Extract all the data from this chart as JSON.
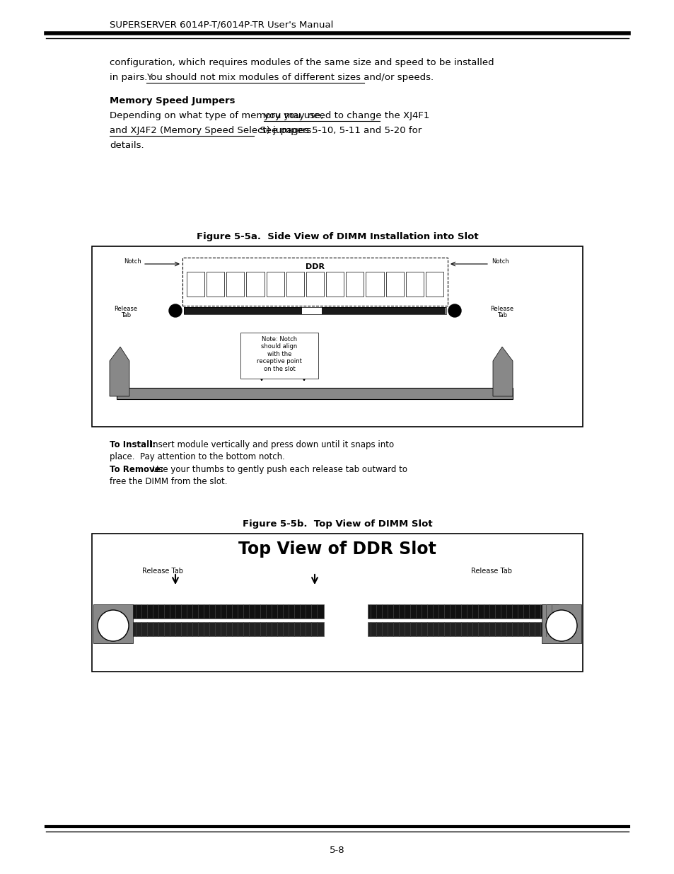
{
  "bg_color": "#ffffff",
  "header_text": "SUPERSERVER 6014P-T/6014P-TR User's Manual",
  "footer_text": "5-8",
  "section_title": "Memory Speed Jumpers",
  "figure_5a_title": "Figure 5-5a.  Side View of DIMM Installation into Slot",
  "figure_5b_title": "Figure 5-5b.  Top View of DIMM Slot",
  "top_view_title": "Top View of DDR Slot",
  "ddr_label": "DDR",
  "notch_label": "Notch",
  "release_tab_label": "Release\nTab",
  "release_tab_label2": "Release Tab",
  "note_text": "Note: Notch\nshould align\nwith the\nreceptive point\non the slot",
  "to_install_bold": "To Install:",
  "to_install_rest": " Insert module vertically and press down until it snaps into",
  "to_install_line2": "place.  Pay attention to the bottom notch.",
  "to_remove_bold": "To Remove:",
  "to_remove_rest": " Use your thumbs to gently push each release tab outward to",
  "to_remove_line2": "free the DIMM from the slot."
}
